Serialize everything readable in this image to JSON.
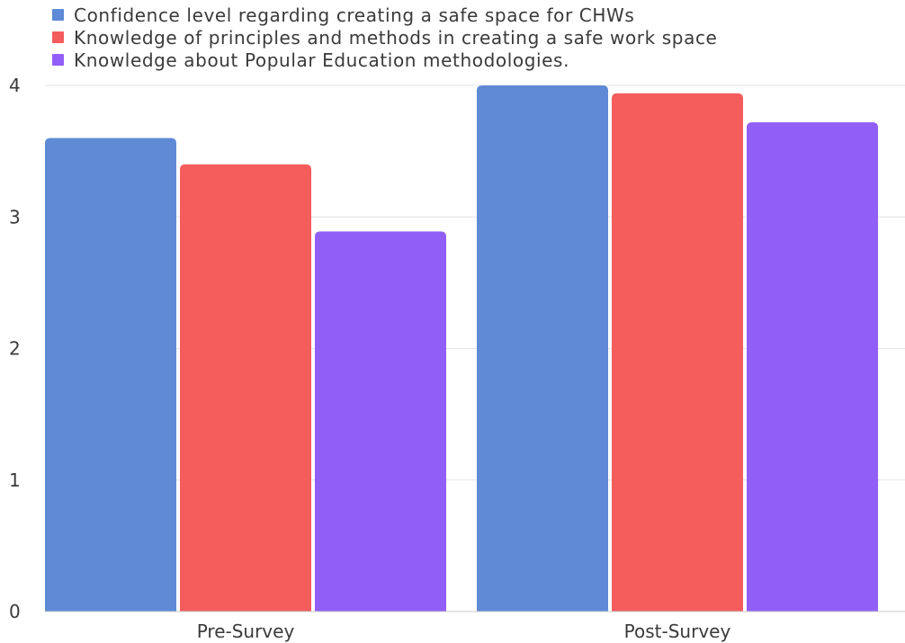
{
  "chart_data": {
    "type": "bar",
    "categories": [
      "Pre-Survey",
      "Post-Survey"
    ],
    "series": [
      {
        "name": "Confidence level regarding creating a safe space for CHWs",
        "values": [
          3.6,
          4.0
        ],
        "color": "#5e8ad6"
      },
      {
        "name": "Knowledge of principles and methods in creating a safe work space",
        "values": [
          3.4,
          3.94
        ],
        "color": "#f55c5c"
      },
      {
        "name": "Knowledge about Popular Education methodologies.",
        "values": [
          2.89,
          3.72
        ],
        "color": "#915ff7"
      }
    ],
    "ylim": [
      0,
      4
    ],
    "yticks": [
      "0",
      "1",
      "2",
      "3",
      "4"
    ],
    "grid": true,
    "legend_position": "top-left",
    "title": "",
    "xlabel": "",
    "ylabel": ""
  }
}
